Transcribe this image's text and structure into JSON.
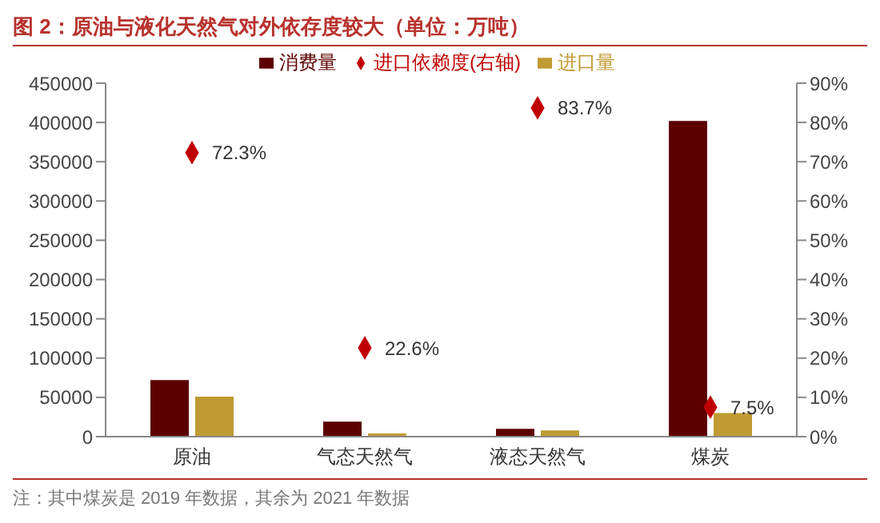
{
  "chart_data": {
    "type": "bar",
    "title": "图 2：原油与液化天然气对外依存度较大（单位：万吨）",
    "categories": [
      "原油",
      "气态天然气",
      "液态天然气",
      "煤炭"
    ],
    "series": [
      {
        "name": "消费量",
        "color": "#5c0000",
        "values": [
          72000,
          19000,
          10000,
          402000
        ]
      },
      {
        "name": "进口量",
        "color": "#c09a32",
        "values": [
          51000,
          4000,
          8000,
          30000
        ]
      },
      {
        "name": "进口依赖度(右轴)",
        "type": "scatter",
        "axis": "y2",
        "color": "#c00000",
        "marker": "diamond",
        "values": [
          72.3,
          22.6,
          83.7,
          7.5
        ],
        "value_labels": [
          "72.3%",
          "22.6%",
          "83.7%",
          "7.5%"
        ]
      }
    ],
    "ylim": [
      0,
      450000
    ],
    "yticks": [
      0,
      50000,
      100000,
      150000,
      200000,
      250000,
      300000,
      350000,
      400000,
      450000
    ],
    "y2lim": [
      0,
      90
    ],
    "y2ticks": [
      {
        "value": 0,
        "label": "0%"
      },
      {
        "value": 10,
        "label": "10%"
      },
      {
        "value": 20,
        "label": "20%"
      },
      {
        "value": 30,
        "label": "30%"
      },
      {
        "value": 40,
        "label": "40%"
      },
      {
        "value": 50,
        "label": "50%"
      },
      {
        "value": 60,
        "label": "60%"
      },
      {
        "value": 70,
        "label": "70%"
      },
      {
        "value": 80,
        "label": "80%"
      },
      {
        "value": 90,
        "label": "90%"
      }
    ],
    "grid": false,
    "legend": "top",
    "annotations": [
      "注：其中煤炭是 2019 年数据，其余为 2021 年数据"
    ]
  }
}
